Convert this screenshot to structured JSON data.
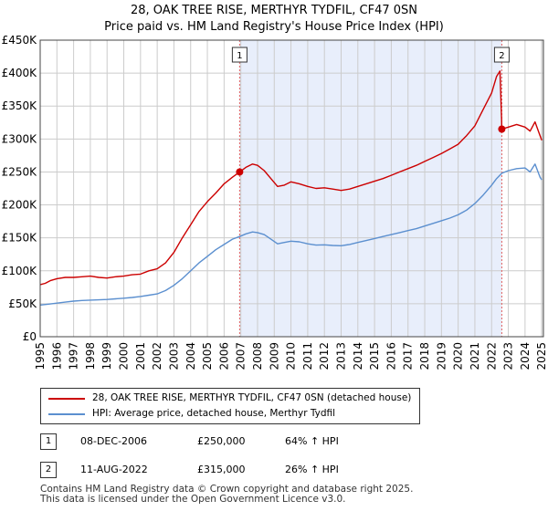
{
  "title_line1": "28, OAK TREE RISE, MERTHYR TYDFIL, CF47 0SN",
  "title_line2": "Price paid vs. HM Land Registry's House Price Index (HPI)",
  "chart_data": {
    "type": "line",
    "x_range": [
      1995,
      2025.1
    ],
    "y_range": [
      0,
      450000
    ],
    "y_ticks": [
      {
        "value": 0,
        "label": "£0"
      },
      {
        "value": 50000,
        "label": "£50K"
      },
      {
        "value": 100000,
        "label": "£100K"
      },
      {
        "value": 150000,
        "label": "£150K"
      },
      {
        "value": 200000,
        "label": "£200K"
      },
      {
        "value": 250000,
        "label": "£250K"
      },
      {
        "value": 300000,
        "label": "£300K"
      },
      {
        "value": 350000,
        "label": "£350K"
      },
      {
        "value": 400000,
        "label": "£400K"
      },
      {
        "value": 450000,
        "label": "£450K"
      }
    ],
    "x_ticks": [
      "1995",
      "1996",
      "1997",
      "1998",
      "1999",
      "2000",
      "2001",
      "2002",
      "2003",
      "2004",
      "2005",
      "2006",
      "2007",
      "2008",
      "2009",
      "2010",
      "2011",
      "2012",
      "2013",
      "2014",
      "2015",
      "2016",
      "2017",
      "2018",
      "2019",
      "2020",
      "2021",
      "2022",
      "2023",
      "2024",
      "2025"
    ],
    "colors": {
      "price": "#cc0000",
      "hpi": "#5b8fcf",
      "shade": "#e8eefb",
      "grid": "#cccccc",
      "vline": "#e06060"
    },
    "series": [
      {
        "name": "28, OAK TREE RISE, MERTHYR TYDFIL, CF47 0SN (detached house)",
        "color": "#cc0000",
        "points": [
          [
            1995.0,
            79000
          ],
          [
            1995.3,
            81000
          ],
          [
            1995.6,
            85000
          ],
          [
            1996.0,
            88000
          ],
          [
            1996.5,
            90000
          ],
          [
            1997.0,
            90000
          ],
          [
            1997.5,
            91000
          ],
          [
            1998.0,
            92000
          ],
          [
            1998.5,
            90000
          ],
          [
            1999.0,
            89000
          ],
          [
            1999.5,
            91000
          ],
          [
            2000.0,
            92000
          ],
          [
            2000.5,
            94000
          ],
          [
            2001.0,
            95000
          ],
          [
            2001.5,
            100000
          ],
          [
            2002.0,
            103000
          ],
          [
            2002.5,
            112000
          ],
          [
            2003.0,
            128000
          ],
          [
            2003.5,
            150000
          ],
          [
            2004.0,
            170000
          ],
          [
            2004.5,
            190000
          ],
          [
            2005.0,
            205000
          ],
          [
            2005.5,
            218000
          ],
          [
            2006.0,
            232000
          ],
          [
            2006.5,
            242000
          ],
          [
            2006.93,
            250000
          ],
          [
            2007.3,
            257000
          ],
          [
            2007.7,
            262000
          ],
          [
            2008.0,
            260000
          ],
          [
            2008.4,
            252000
          ],
          [
            2008.8,
            240000
          ],
          [
            2009.2,
            228000
          ],
          [
            2009.6,
            230000
          ],
          [
            2010.0,
            235000
          ],
          [
            2010.5,
            232000
          ],
          [
            2011.0,
            228000
          ],
          [
            2011.5,
            225000
          ],
          [
            2012.0,
            226000
          ],
          [
            2012.5,
            224000
          ],
          [
            2013.0,
            222000
          ],
          [
            2013.5,
            224000
          ],
          [
            2014.0,
            228000
          ],
          [
            2014.5,
            232000
          ],
          [
            2015.0,
            236000
          ],
          [
            2015.5,
            240000
          ],
          [
            2016.0,
            245000
          ],
          [
            2016.5,
            250000
          ],
          [
            2017.0,
            255000
          ],
          [
            2017.5,
            260000
          ],
          [
            2018.0,
            266000
          ],
          [
            2018.5,
            272000
          ],
          [
            2019.0,
            278000
          ],
          [
            2019.5,
            285000
          ],
          [
            2020.0,
            292000
          ],
          [
            2020.5,
            305000
          ],
          [
            2021.0,
            320000
          ],
          [
            2021.5,
            345000
          ],
          [
            2022.0,
            370000
          ],
          [
            2022.3,
            395000
          ],
          [
            2022.5,
            403000
          ],
          [
            2022.6,
            330000
          ],
          [
            2022.61,
            315000
          ],
          [
            2023.0,
            318000
          ],
          [
            2023.5,
            322000
          ],
          [
            2024.0,
            318000
          ],
          [
            2024.3,
            312000
          ],
          [
            2024.6,
            326000
          ],
          [
            2024.9,
            305000
          ],
          [
            2025.0,
            298000
          ]
        ]
      },
      {
        "name": "HPI: Average price, detached house, Merthyr Tydfil",
        "color": "#5b8fcf",
        "points": [
          [
            1995.0,
            48000
          ],
          [
            1995.5,
            49500
          ],
          [
            1996.0,
            51000
          ],
          [
            1996.5,
            52500
          ],
          [
            1997.0,
            54000
          ],
          [
            1997.5,
            55000
          ],
          [
            1998.0,
            55500
          ],
          [
            1998.5,
            56000
          ],
          [
            1999.0,
            56500
          ],
          [
            1999.5,
            57500
          ],
          [
            2000.0,
            58500
          ],
          [
            2000.5,
            59500
          ],
          [
            2001.0,
            61000
          ],
          [
            2001.5,
            63000
          ],
          [
            2002.0,
            65000
          ],
          [
            2002.5,
            70000
          ],
          [
            2003.0,
            78000
          ],
          [
            2003.5,
            88000
          ],
          [
            2004.0,
            100000
          ],
          [
            2004.5,
            112000
          ],
          [
            2005.0,
            122000
          ],
          [
            2005.5,
            132000
          ],
          [
            2006.0,
            140000
          ],
          [
            2006.5,
            148000
          ],
          [
            2006.93,
            152000
          ],
          [
            2007.3,
            156000
          ],
          [
            2007.7,
            159000
          ],
          [
            2008.0,
            158000
          ],
          [
            2008.4,
            155000
          ],
          [
            2008.8,
            148000
          ],
          [
            2009.2,
            141000
          ],
          [
            2009.6,
            143000
          ],
          [
            2010.0,
            145000
          ],
          [
            2010.5,
            144000
          ],
          [
            2011.0,
            141000
          ],
          [
            2011.5,
            139000
          ],
          [
            2012.0,
            139500
          ],
          [
            2012.5,
            138500
          ],
          [
            2013.0,
            138000
          ],
          [
            2013.5,
            140000
          ],
          [
            2014.0,
            143000
          ],
          [
            2014.5,
            146000
          ],
          [
            2015.0,
            149000
          ],
          [
            2015.5,
            152000
          ],
          [
            2016.0,
            155000
          ],
          [
            2016.5,
            158000
          ],
          [
            2017.0,
            161000
          ],
          [
            2017.5,
            164000
          ],
          [
            2018.0,
            168000
          ],
          [
            2018.5,
            172000
          ],
          [
            2019.0,
            176000
          ],
          [
            2019.5,
            180000
          ],
          [
            2020.0,
            185000
          ],
          [
            2020.5,
            192000
          ],
          [
            2021.0,
            202000
          ],
          [
            2021.5,
            215000
          ],
          [
            2022.0,
            230000
          ],
          [
            2022.3,
            240000
          ],
          [
            2022.61,
            248000
          ],
          [
            2023.0,
            252000
          ],
          [
            2023.5,
            255000
          ],
          [
            2024.0,
            256000
          ],
          [
            2024.3,
            250000
          ],
          [
            2024.6,
            262000
          ],
          [
            2024.9,
            242000
          ],
          [
            2025.0,
            238000
          ]
        ]
      }
    ],
    "sales": [
      {
        "label": "1",
        "x": 2006.93,
        "y": 250000
      },
      {
        "label": "2",
        "x": 2022.61,
        "y": 315000
      }
    ]
  },
  "legend": {
    "price_label": "28, OAK TREE RISE, MERTHYR TYDFIL, CF47 0SN (detached house)",
    "hpi_label": "HPI: Average price, detached house, Merthyr Tydfil"
  },
  "transactions": [
    {
      "marker": "1",
      "date": "08-DEC-2006",
      "price": "£250,000",
      "hpi": "64% ↑ HPI"
    },
    {
      "marker": "2",
      "date": "11-AUG-2022",
      "price": "£315,000",
      "hpi": "26% ↑ HPI"
    }
  ],
  "footer_line1": "Contains HM Land Registry data © Crown copyright and database right 2025.",
  "footer_line2": "This data is licensed under the Open Government Licence v3.0."
}
